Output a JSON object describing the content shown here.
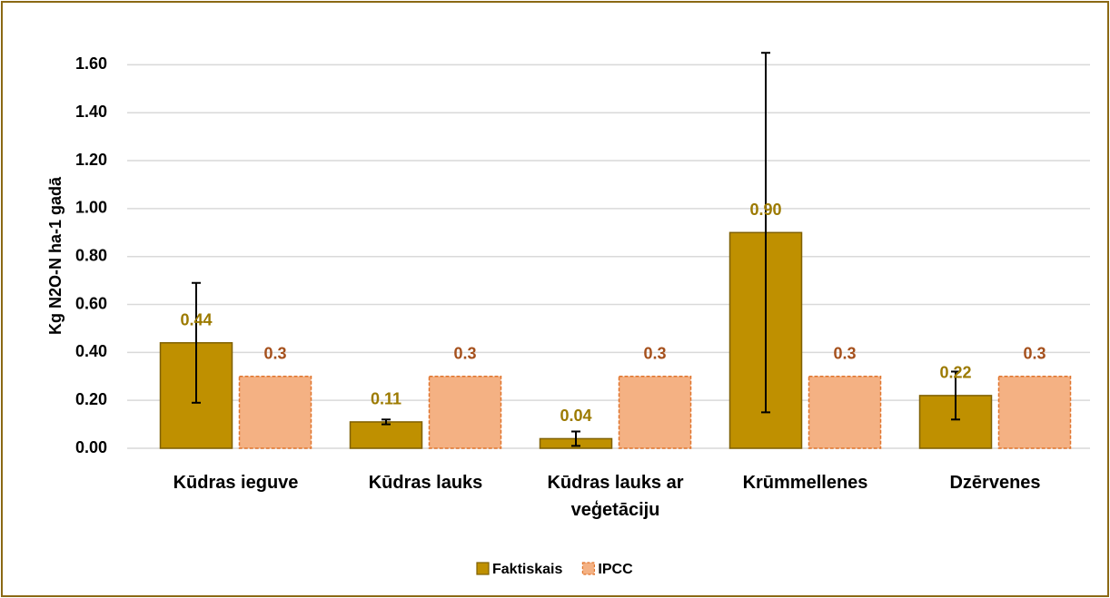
{
  "chart_data": {
    "type": "bar",
    "y_label": "Kg N2O-N ha-1 gadā",
    "categories": [
      "Kūdras ieguve",
      "Kūdras lauks",
      "Kūdras lauks ar veģetāciju",
      "Krūmmellenes",
      "Dzērvenes"
    ],
    "series": [
      {
        "name": "Faktiskais",
        "color": "#BF9000",
        "edge": "#7F6000",
        "label_color": "#9C7A00",
        "values": [
          0.44,
          0.11,
          0.04,
          0.9,
          0.22
        ],
        "value_labels": [
          "0.44",
          "0.11",
          "0.04",
          "0.90",
          "0.22"
        ],
        "errors": [
          0.25,
          0.01,
          0.03,
          0.75,
          0.1
        ]
      },
      {
        "name": "IPCC",
        "color": "#F4B183",
        "edge": "#E0752E",
        "label_color": "#A5501C",
        "dashed": true,
        "values": [
          0.3,
          0.3,
          0.3,
          0.3,
          0.3
        ]
      }
    ],
    "ylim": [
      0,
      1.7
    ],
    "yticks": [
      {
        "value": 0,
        "label": "0.00"
      },
      {
        "value": 0.2,
        "label": "0.20"
      },
      {
        "value": 0.4,
        "label": "0.40"
      },
      {
        "value": 0.6,
        "label": "0.60"
      },
      {
        "value": 0.8,
        "label": "0.80"
      },
      {
        "value": 1.0,
        "label": "1.00"
      },
      {
        "value": 1.2,
        "label": "1.20"
      },
      {
        "value": 1.4,
        "label": "1.40"
      },
      {
        "value": 1.6,
        "label": "1.60"
      }
    ],
    "grid": true,
    "legend": "bottom"
  }
}
